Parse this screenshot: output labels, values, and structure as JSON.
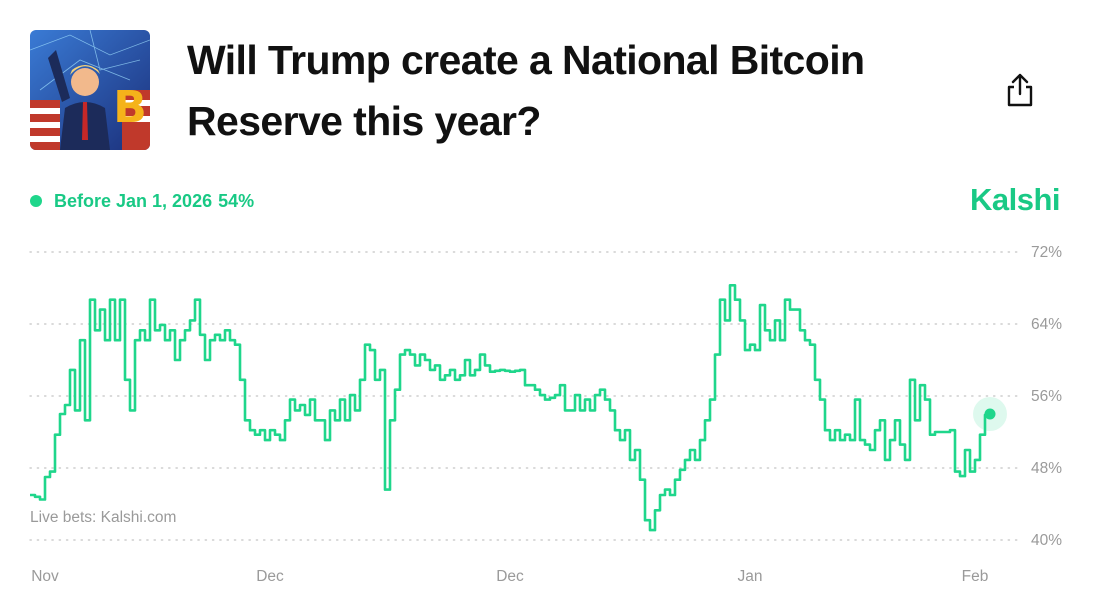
{
  "header": {
    "title": "Will Trump create a National Bitcoin Reserve this year?"
  },
  "chart_data": {
    "type": "line",
    "brand": "Kalshi",
    "source_note": "Live bets: Kalshi.com",
    "series": [
      {
        "name": "Before Jan 1, 2026",
        "color": "#1fd68b",
        "current_value": {
          "value": 54,
          "label": "54%"
        },
        "values": [
          45,
          44.8,
          44.5,
          47,
          47.6,
          51.7,
          54,
          55,
          58.9,
          54.4,
          62.2,
          53.3,
          66.7,
          63.3,
          65.6,
          62.2,
          66.7,
          62.2,
          66.7,
          57.8,
          54.4,
          62.2,
          63.3,
          62.2,
          66.7,
          63.3,
          63.9,
          62.2,
          63.3,
          60,
          62.2,
          63.3,
          64.4,
          66.7,
          62.8,
          60,
          62.2,
          62.8,
          62.2,
          63.3,
          62.2,
          61.7,
          57.8,
          53.3,
          52.2,
          51.7,
          52.2,
          51.1,
          52.2,
          51.7,
          51.1,
          53.3,
          55.6,
          54.4,
          55,
          53.9,
          55.6,
          53.3,
          53.3,
          51.1,
          54.4,
          53.3,
          55.6,
          53.3,
          56.1,
          54.4,
          57.8,
          61.7,
          61.1,
          57.8,
          58.9,
          45.6,
          53.3,
          56.7,
          60.6,
          61.1,
          60.6,
          59.4,
          60.6,
          60,
          58.9,
          59.4,
          57.8,
          58.3,
          58.9,
          57.8,
          58.3,
          60,
          58.3,
          58.9,
          60.6,
          59.4,
          58.7,
          58.8,
          58.9,
          58.8,
          58.7,
          58.8,
          58.9,
          57.2,
          57.2,
          56.7,
          56.1,
          55.6,
          55.8,
          56.1,
          57.2,
          54.4,
          54.4,
          56.1,
          54.4,
          55.6,
          54.4,
          56.1,
          56.7,
          55.6,
          54.4,
          52.2,
          51.1,
          52.2,
          48.9,
          50,
          46.7,
          42.2,
          41.1,
          43.3,
          45,
          45.6,
          45,
          46.7,
          47.8,
          48.9,
          50,
          48.9,
          51.1,
          53.3,
          55.6,
          60.6,
          66.7,
          64.4,
          68.3,
          66.7,
          64.4,
          61.1,
          61.7,
          61.1,
          66.1,
          63.3,
          62.2,
          64.4,
          62.2,
          66.7,
          65.6,
          65.6,
          63.3,
          62.2,
          61.7,
          57.8,
          55.6,
          52.2,
          51.1,
          52.2,
          51.1,
          51.7,
          51.1,
          55.6,
          51.1,
          50.6,
          50,
          52.2,
          53.3,
          48.9,
          51.1,
          53.3,
          50.6,
          48.9,
          57.8,
          53.3,
          57.2,
          55.6,
          51.7,
          52,
          52,
          52,
          52.2,
          47.6,
          47.1,
          50,
          47.6,
          48.9,
          51.7,
          53.9,
          54.1
        ]
      }
    ],
    "xlim": [
      0,
      192
    ],
    "xticks": [
      {
        "value": 3,
        "label": "Nov"
      },
      {
        "value": 48,
        "label": "Dec"
      },
      {
        "value": 96,
        "label": "Dec"
      },
      {
        "value": 144,
        "label": "Jan"
      },
      {
        "value": 189,
        "label": "Feb"
      }
    ],
    "ylim": [
      40,
      72
    ],
    "yticks": [
      {
        "value": 40,
        "label": "40%"
      },
      {
        "value": 48,
        "label": "48%"
      },
      {
        "value": 56,
        "label": "56%"
      },
      {
        "value": 64,
        "label": "64%"
      },
      {
        "value": 72,
        "label": "72%"
      }
    ],
    "grid": true
  }
}
